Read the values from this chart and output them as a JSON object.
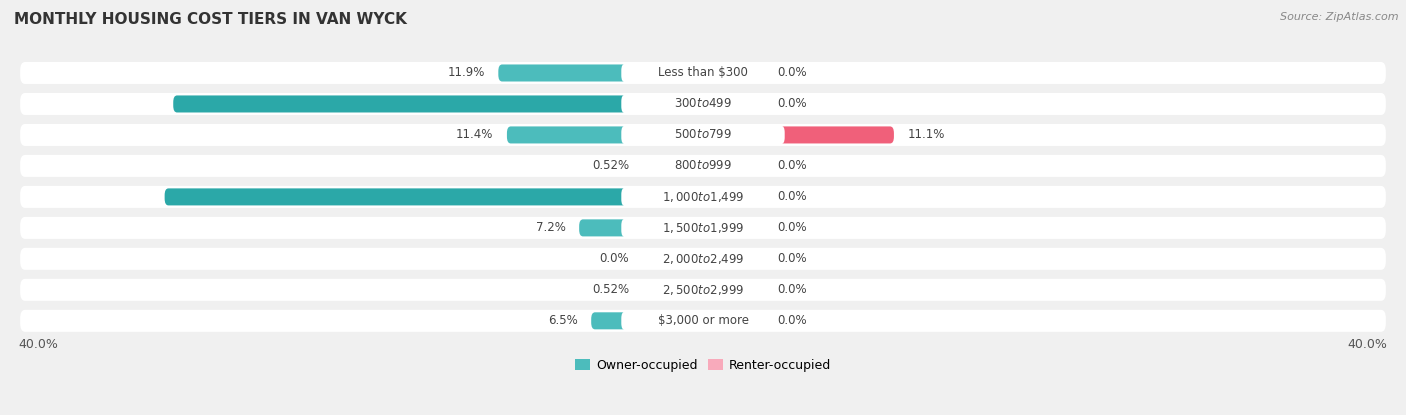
{
  "title": "MONTHLY HOUSING COST TIERS IN VAN WYCK",
  "source": "Source: ZipAtlas.com",
  "categories": [
    "Less than $300",
    "$300 to $499",
    "$500 to $799",
    "$800 to $999",
    "$1,000 to $1,499",
    "$1,500 to $1,999",
    "$2,000 to $2,499",
    "$2,500 to $2,999",
    "$3,000 or more"
  ],
  "owner_values": [
    11.9,
    30.8,
    11.4,
    0.52,
    31.3,
    7.2,
    0.0,
    0.52,
    6.5
  ],
  "renter_values": [
    0.0,
    0.0,
    11.1,
    0.0,
    0.0,
    0.0,
    0.0,
    0.0,
    0.0
  ],
  "owner_color_dark": "#2BA8A8",
  "owner_color_mid": "#4CBCBC",
  "owner_color_light": "#7DD0D0",
  "renter_color_dark": "#F0607A",
  "renter_color_light": "#F8AABB",
  "axis_limit": 40.0,
  "axis_label_left": "40.0%",
  "axis_label_right": "40.0%",
  "legend_owner": "Owner-occupied",
  "legend_renter": "Renter-occupied",
  "bg_color": "#f0f0f0",
  "row_bg_color": "#ffffff",
  "bar_height": 0.55,
  "min_stub": 3.5,
  "title_fontsize": 11,
  "label_fontsize": 8.5,
  "source_fontsize": 8,
  "legend_fontsize": 9,
  "axis_fontsize": 9
}
